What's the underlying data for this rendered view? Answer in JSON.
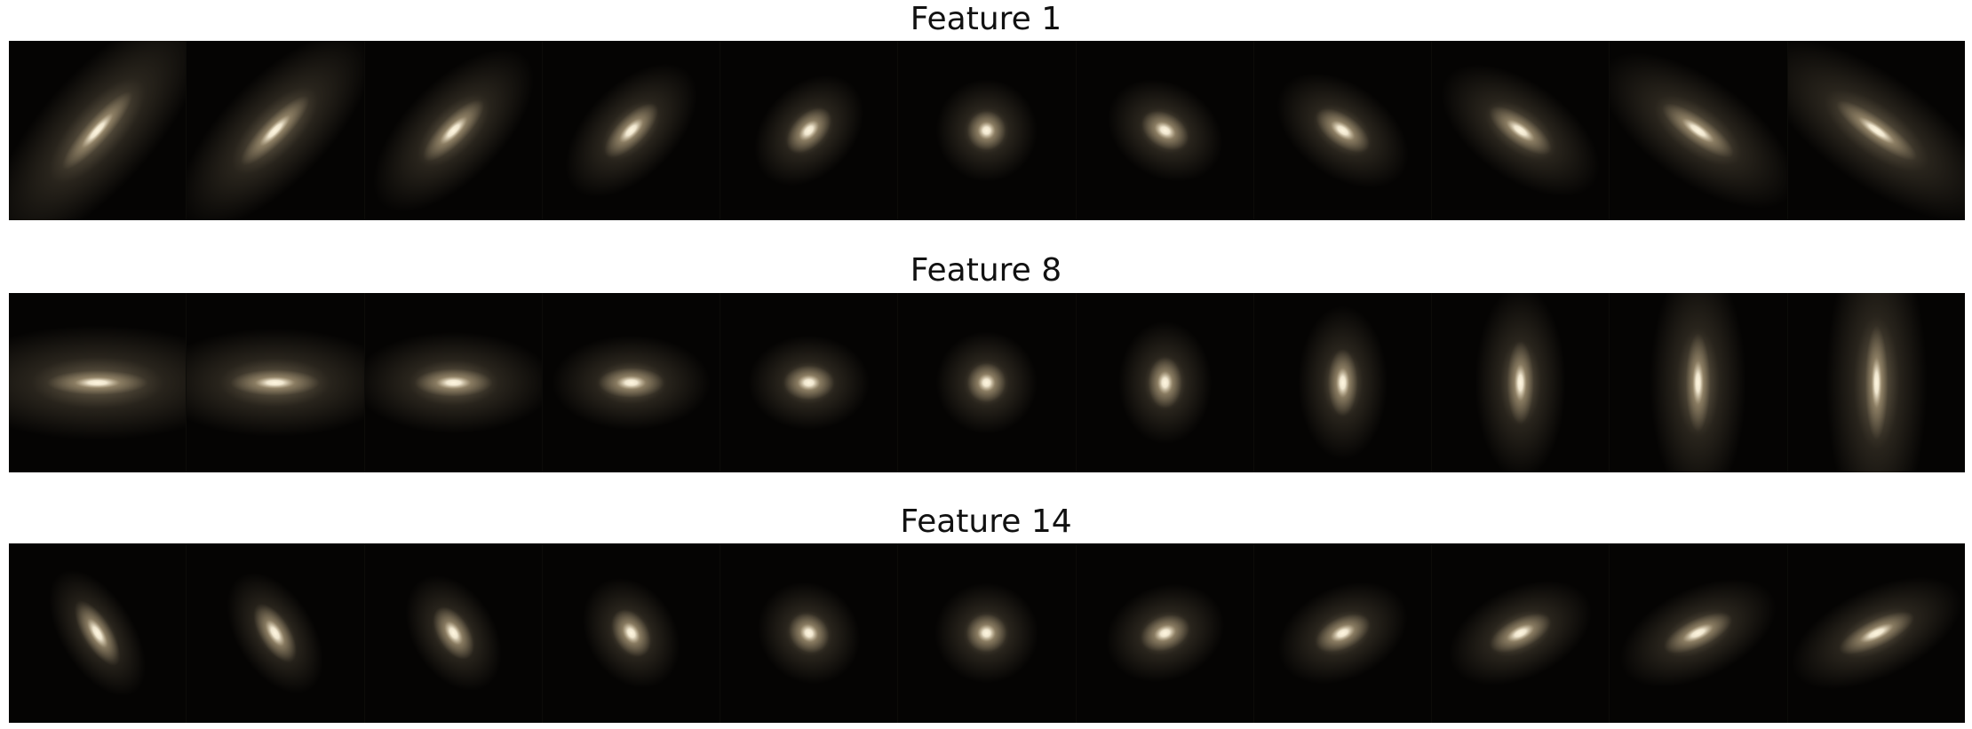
{
  "figure": {
    "rows": [
      {
        "title": "Feature 1",
        "tiles": [
          {
            "angle": -48,
            "elongation": 2.6,
            "spread": 1.8
          },
          {
            "angle": -45,
            "elongation": 2.4,
            "spread": 1.6
          },
          {
            "angle": -45,
            "elongation": 2.1,
            "spread": 1.4
          },
          {
            "angle": -45,
            "elongation": 1.8,
            "spread": 1.2
          },
          {
            "angle": -45,
            "elongation": 1.4,
            "spread": 1.05
          },
          {
            "angle": 0,
            "elongation": 1.0,
            "spread": 1.0
          },
          {
            "angle": 30,
            "elongation": 1.3,
            "spread": 1.05
          },
          {
            "angle": 35,
            "elongation": 1.6,
            "spread": 1.15
          },
          {
            "angle": 35,
            "elongation": 1.9,
            "spread": 1.3
          },
          {
            "angle": 35,
            "elongation": 2.2,
            "spread": 1.5
          },
          {
            "angle": 35,
            "elongation": 2.5,
            "spread": 1.7
          }
        ]
      },
      {
        "title": "Feature 8",
        "tiles": [
          {
            "angle": 0,
            "elongation": 2.6,
            "spread": 1.8
          },
          {
            "angle": 0,
            "elongation": 2.3,
            "spread": 1.6
          },
          {
            "angle": 0,
            "elongation": 2.0,
            "spread": 1.4
          },
          {
            "angle": 0,
            "elongation": 1.7,
            "spread": 1.2
          },
          {
            "angle": 0,
            "elongation": 1.3,
            "spread": 1.05
          },
          {
            "angle": 0,
            "elongation": 1.0,
            "spread": 1.0
          },
          {
            "angle": 90,
            "elongation": 1.3,
            "spread": 1.05
          },
          {
            "angle": 90,
            "elongation": 1.7,
            "spread": 1.15
          },
          {
            "angle": 90,
            "elongation": 2.1,
            "spread": 1.3
          },
          {
            "angle": 90,
            "elongation": 2.5,
            "spread": 1.5
          },
          {
            "angle": 90,
            "elongation": 2.9,
            "spread": 1.7
          }
        ]
      },
      {
        "title": "Feature 14",
        "tiles": [
          {
            "angle": 58,
            "elongation": 1.9,
            "spread": 1.0
          },
          {
            "angle": 58,
            "elongation": 1.7,
            "spread": 1.0
          },
          {
            "angle": 58,
            "elongation": 1.5,
            "spread": 1.0
          },
          {
            "angle": 58,
            "elongation": 1.3,
            "spread": 1.0
          },
          {
            "angle": 40,
            "elongation": 1.1,
            "spread": 1.0
          },
          {
            "angle": 0,
            "elongation": 1.05,
            "spread": 1.0
          },
          {
            "angle": -20,
            "elongation": 1.3,
            "spread": 1.05
          },
          {
            "angle": -25,
            "elongation": 1.5,
            "spread": 1.1
          },
          {
            "angle": -25,
            "elongation": 1.7,
            "spread": 1.15
          },
          {
            "angle": -25,
            "elongation": 1.9,
            "spread": 1.2
          },
          {
            "angle": -25,
            "elongation": 2.1,
            "spread": 1.25
          }
        ]
      }
    ],
    "colors": {
      "background": "#050403",
      "core": "#fff6df",
      "glow": "#c8b48e"
    }
  }
}
